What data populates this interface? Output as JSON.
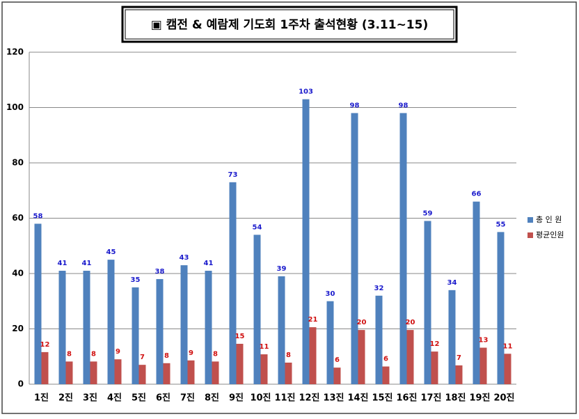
{
  "chart_data": {
    "type": "bar",
    "title": "▣ 캠전 & 예람제 기도회 1주차 출석현황 (3.11~15)",
    "categories": [
      "1진",
      "2진",
      "3진",
      "4진",
      "5진",
      "6진",
      "7진",
      "8진",
      "9진",
      "10진",
      "11진",
      "12진",
      "13진",
      "14진",
      "15진",
      "16진",
      "17진",
      "18진",
      "19진",
      "20진"
    ],
    "series": [
      {
        "name": "총 인 원",
        "color": "#4f81bd",
        "label_color": "#1a1acc",
        "values": [
          58,
          41,
          41,
          45,
          35,
          38,
          43,
          41,
          73,
          54,
          39,
          103,
          30,
          98,
          32,
          98,
          59,
          34,
          66,
          55
        ]
      },
      {
        "name": "평균인원",
        "color": "#c0504d",
        "label_color": "#d01010",
        "values": [
          11.6,
          8.2,
          8.2,
          9,
          7,
          7.6,
          8.6,
          8.2,
          14.6,
          10.8,
          7.8,
          20.6,
          6,
          19.6,
          6.4,
          19.6,
          11.8,
          6.8,
          13.2,
          11
        ],
        "value_labels": [
          "12",
          "8",
          "8",
          "9",
          "7",
          "8",
          "9",
          "8",
          "15",
          "11",
          "8",
          "21",
          "6",
          "20",
          "6",
          "20",
          "12",
          "7",
          "13",
          "11"
        ]
      }
    ],
    "ylim": [
      0,
      120
    ],
    "yticks": [
      0,
      20,
      40,
      60,
      80,
      100,
      120
    ],
    "grid": true,
    "legend": "right"
  }
}
